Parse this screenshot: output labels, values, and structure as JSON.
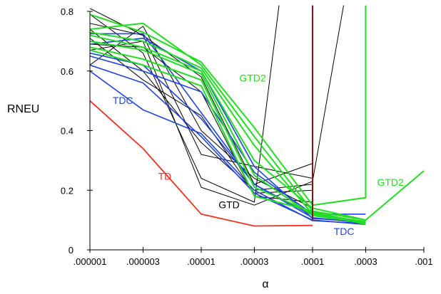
{
  "chart_data": {
    "type": "line",
    "xlabel": "α",
    "ylabel": "RNEU",
    "x_scale": "log",
    "x_ticks": [
      {
        "value": 1e-06,
        "label": ".000001"
      },
      {
        "value": 3e-06,
        "label": ".000003"
      },
      {
        "value": 1e-05,
        "label": ".00001"
      },
      {
        "value": 3e-05,
        "label": ".00003"
      },
      {
        "value": 0.0001,
        "label": ".0001"
      },
      {
        "value": 0.0003,
        "label": ".0003"
      },
      {
        "value": 0.001,
        "label": ".001"
      }
    ],
    "y_ticks": [
      {
        "value": 0,
        "label": "0"
      },
      {
        "value": 0.2,
        "label": "0.2"
      },
      {
        "value": 0.4,
        "label": "0.4"
      },
      {
        "value": 0.6,
        "label": "0.6"
      },
      {
        "value": 0.8,
        "label": "0.8"
      }
    ],
    "xlim": [
      1e-06,
      0.001
    ],
    "ylim": [
      0,
      0.8
    ],
    "grid": false,
    "colors": {
      "TD": "#ee3322",
      "GTD": "#000000",
      "TDC": "#2244dd",
      "GTD2": "#22dd22",
      "vline": "#8b1111"
    },
    "series": [
      {
        "group": "TD",
        "points": [
          [
            1e-06,
            0.5
          ],
          [
            3e-06,
            0.34
          ],
          [
            1e-05,
            0.12
          ],
          [
            3e-05,
            0.08
          ],
          [
            0.0001,
            0.082
          ]
        ]
      },
      {
        "group": "GTD",
        "points": [
          [
            1e-06,
            0.81
          ],
          [
            3e-06,
            0.72
          ],
          [
            1e-05,
            0.32
          ],
          [
            3e-05,
            0.28
          ],
          [
            0.0001,
            0.24
          ]
        ]
      },
      {
        "group": "GTD",
        "points": [
          [
            1e-06,
            0.79
          ],
          [
            3e-06,
            0.66
          ],
          [
            1e-05,
            0.24
          ],
          [
            3e-05,
            0.16
          ],
          [
            5e-05,
            0.82
          ]
        ]
      },
      {
        "group": "GTD",
        "points": [
          [
            1e-06,
            0.76
          ],
          [
            3e-06,
            0.72
          ],
          [
            1e-05,
            0.58
          ],
          [
            3e-05,
            0.22
          ],
          [
            0.0001,
            0.29
          ]
        ]
      },
      {
        "group": "GTD",
        "points": [
          [
            1e-06,
            0.74
          ],
          [
            3e-06,
            0.6
          ],
          [
            1e-05,
            0.36
          ],
          [
            3e-05,
            0.2
          ],
          [
            0.0001,
            0.22
          ]
        ]
      },
      {
        "group": "GTD",
        "points": [
          [
            1e-06,
            0.71
          ],
          [
            3e-06,
            0.57
          ],
          [
            1e-05,
            0.45
          ],
          [
            3e-05,
            0.19
          ],
          [
            0.0001,
            0.2
          ]
        ]
      },
      {
        "group": "GTD",
        "points": [
          [
            1e-06,
            0.69
          ],
          [
            3e-06,
            0.68
          ],
          [
            1e-05,
            0.53
          ],
          [
            3e-05,
            0.18
          ],
          [
            0.0001,
            0.16
          ]
        ]
      },
      {
        "group": "GTD",
        "points": [
          [
            1e-06,
            0.67
          ],
          [
            3e-06,
            0.7
          ],
          [
            1e-05,
            0.21
          ],
          [
            3e-05,
            0.15
          ],
          [
            0.0001,
            0.23
          ],
          [
            0.00019,
            0.82
          ]
        ]
      },
      {
        "group": "GTD",
        "points": [
          [
            1e-06,
            0.62
          ],
          [
            3e-06,
            0.75
          ],
          [
            1e-05,
            0.4
          ],
          [
            3e-05,
            0.24
          ],
          [
            0.0001,
            0.14
          ]
        ]
      },
      {
        "group": "TDC",
        "points": [
          [
            1e-06,
            0.725
          ],
          [
            3e-06,
            0.725
          ],
          [
            1e-05,
            0.46
          ],
          [
            3e-05,
            0.22
          ],
          [
            0.0001,
            0.115
          ],
          [
            0.0003,
            0.092
          ]
        ]
      },
      {
        "group": "TDC",
        "points": [
          [
            1e-06,
            0.69
          ],
          [
            3e-06,
            0.71
          ],
          [
            1e-05,
            0.6
          ],
          [
            3e-05,
            0.28
          ],
          [
            0.0001,
            0.105
          ],
          [
            0.0003,
            0.095
          ]
        ]
      },
      {
        "group": "TDC",
        "points": [
          [
            1e-06,
            0.65
          ],
          [
            3e-06,
            0.6
          ],
          [
            1e-05,
            0.53
          ],
          [
            3e-05,
            0.26
          ],
          [
            0.0001,
            0.12
          ],
          [
            0.0003,
            0.12
          ]
        ]
      },
      {
        "group": "TDC",
        "points": [
          [
            1e-06,
            0.62
          ],
          [
            3e-06,
            0.56
          ],
          [
            1e-05,
            0.38
          ],
          [
            3e-05,
            0.19
          ],
          [
            0.0001,
            0.1
          ],
          [
            0.0003,
            0.085
          ]
        ]
      },
      {
        "group": "TDC",
        "points": [
          [
            1e-06,
            0.6
          ],
          [
            3e-06,
            0.47
          ],
          [
            1e-05,
            0.39
          ],
          [
            3e-05,
            0.2
          ],
          [
            0.0001,
            0.098
          ],
          [
            0.0003,
            0.088
          ]
        ]
      },
      {
        "group": "TDC",
        "points": [
          [
            1e-06,
            0.66
          ],
          [
            3e-06,
            0.62
          ],
          [
            1e-05,
            0.44
          ],
          [
            3e-05,
            0.22
          ],
          [
            0.0001,
            0.108
          ],
          [
            0.0003,
            0.09
          ]
        ]
      },
      {
        "group": "GTD2",
        "points": [
          [
            1e-06,
            0.79
          ],
          [
            3e-06,
            0.73
          ],
          [
            1e-05,
            0.63
          ],
          [
            3e-05,
            0.41
          ],
          [
            0.0001,
            0.15
          ],
          [
            0.0003,
            0.175
          ],
          [
            0.0003,
            0.82
          ]
        ]
      },
      {
        "group": "GTD2",
        "points": [
          [
            1e-06,
            0.74
          ],
          [
            3e-06,
            0.76
          ],
          [
            1e-05,
            0.62
          ],
          [
            3e-05,
            0.38
          ],
          [
            0.0001,
            0.13
          ],
          [
            0.0003,
            0.1
          ],
          [
            0.001,
            0.265
          ]
        ]
      },
      {
        "group": "GTD2",
        "points": [
          [
            1e-06,
            0.73
          ],
          [
            3e-06,
            0.7
          ],
          [
            1e-05,
            0.61
          ],
          [
            3e-05,
            0.35
          ],
          [
            0.0001,
            0.12
          ],
          [
            0.0003,
            0.095
          ]
        ]
      },
      {
        "group": "GTD2",
        "points": [
          [
            1e-06,
            0.72
          ],
          [
            3e-06,
            0.68
          ],
          [
            1e-05,
            0.6
          ],
          [
            3e-05,
            0.3
          ],
          [
            0.0001,
            0.14
          ],
          [
            0.0003,
            0.1
          ]
        ]
      },
      {
        "group": "GTD2",
        "points": [
          [
            1e-06,
            0.7
          ],
          [
            3e-06,
            0.67
          ],
          [
            1e-05,
            0.59
          ],
          [
            3e-05,
            0.25
          ],
          [
            0.0001,
            0.115
          ],
          [
            0.0003,
            0.09
          ]
        ]
      },
      {
        "group": "GTD2",
        "points": [
          [
            1e-06,
            0.68
          ],
          [
            3e-06,
            0.64
          ],
          [
            1e-05,
            0.57
          ],
          [
            3e-05,
            0.21
          ],
          [
            0.0001,
            0.125
          ],
          [
            0.0003,
            0.092
          ]
        ]
      },
      {
        "group": "GTD2",
        "points": [
          [
            1e-06,
            0.67
          ],
          [
            3e-06,
            0.62
          ],
          [
            1e-05,
            0.55
          ],
          [
            3e-05,
            0.18
          ],
          [
            0.0001,
            0.13
          ],
          [
            0.0003,
            0.085
          ]
        ]
      },
      {
        "group": "vline",
        "points": [
          [
            0.0001,
            0.1
          ],
          [
            0.0001,
            0.82
          ]
        ]
      }
    ],
    "annotations": [
      {
        "text": "GTD2",
        "x": 2.2e-05,
        "y": 0.565,
        "group": "GTD2"
      },
      {
        "text": "TDC",
        "x": 1.6e-06,
        "y": 0.49,
        "group": "TDC"
      },
      {
        "text": "TD",
        "x": 4.1e-06,
        "y": 0.235,
        "group": "TD"
      },
      {
        "text": "GTD",
        "x": 1.43e-05,
        "y": 0.14,
        "group": "GTD"
      },
      {
        "text": "GTD2",
        "x": 0.00038,
        "y": 0.215,
        "group": "GTD2"
      },
      {
        "text": "TDC",
        "x": 0.000155,
        "y": 0.05,
        "group": "TDC"
      }
    ]
  }
}
